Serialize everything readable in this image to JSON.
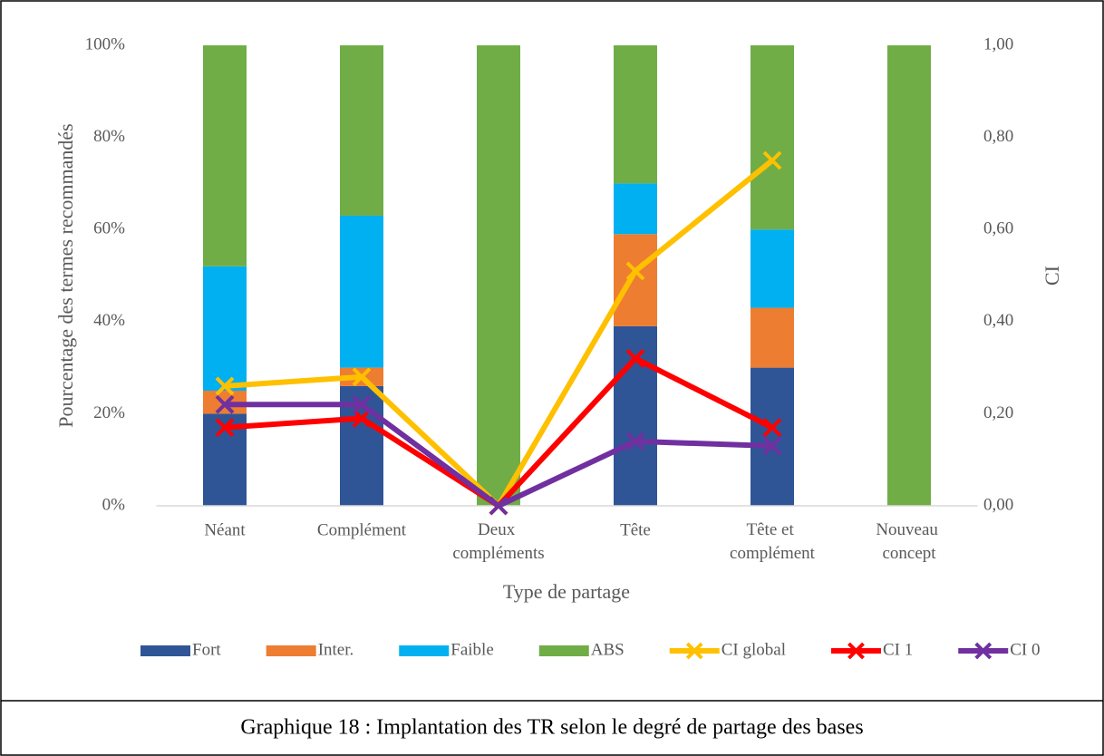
{
  "chart_data": {
    "type": "bar",
    "stacked": true,
    "caption": "Graphique 18 : Implantation des TR selon le degré de partage des bases",
    "xlabel": "Type de partage",
    "ylabel": "Pourcentage des termes recommandés",
    "y2label": "CI",
    "categories": [
      "Néant",
      "Complément",
      "Deux compléments",
      "Tête",
      "Tête et complément",
      "Nouveau concept"
    ],
    "series": [
      {
        "name": "Fort",
        "type": "bar",
        "color": "#2f5597",
        "values": [
          20,
          26,
          0,
          39,
          30,
          0
        ]
      },
      {
        "name": "Inter.",
        "type": "bar",
        "color": "#ed7d31",
        "values": [
          5,
          4,
          0,
          20,
          13,
          0
        ]
      },
      {
        "name": "Faible",
        "type": "bar",
        "color": "#00b0f0",
        "values": [
          27,
          33,
          0,
          11,
          17,
          0
        ]
      },
      {
        "name": "ABS",
        "type": "bar",
        "color": "#70ad47",
        "values": [
          48,
          37,
          100,
          30,
          40,
          100
        ]
      },
      {
        "name": "CI global",
        "type": "line",
        "axis": "y2",
        "color": "#ffc000",
        "values": [
          0.26,
          0.28,
          0,
          0.51,
          0.75,
          null
        ]
      },
      {
        "name": "CI 1",
        "type": "line",
        "axis": "y2",
        "color": "#ff0000",
        "values": [
          0.17,
          0.19,
          0,
          0.32,
          0.17,
          null
        ]
      },
      {
        "name": "CI 0",
        "type": "line",
        "axis": "y2",
        "color": "#7030a0",
        "values": [
          0.22,
          0.22,
          0,
          0.14,
          0.13,
          null
        ]
      }
    ],
    "ylim": [
      0,
      100
    ],
    "yticks": [
      {
        "value": 0,
        "label": "0%"
      },
      {
        "value": 20,
        "label": "20%"
      },
      {
        "value": 40,
        "label": "40%"
      },
      {
        "value": 60,
        "label": "60%"
      },
      {
        "value": 80,
        "label": "80%"
      },
      {
        "value": 100,
        "label": "100%"
      }
    ],
    "y2lim": [
      0,
      1
    ],
    "y2ticks": [
      {
        "value": 0,
        "label": "0,00"
      },
      {
        "value": 0.2,
        "label": "0,20"
      },
      {
        "value": 0.4,
        "label": "0,40"
      },
      {
        "value": 0.6,
        "label": "0,60"
      },
      {
        "value": 0.8,
        "label": "0,80"
      },
      {
        "value": 1,
        "label": "1,00"
      }
    ],
    "grid": false,
    "legend": "bottom"
  }
}
